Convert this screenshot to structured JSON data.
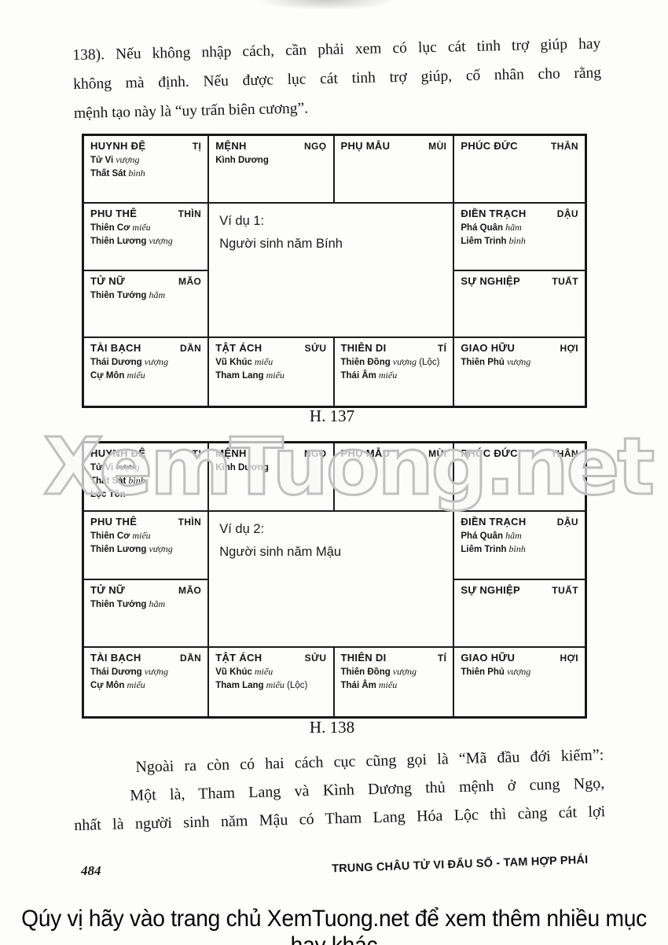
{
  "paragraph_top": {
    "lines": [
      "138). Nếu không nhập cách, cần phải xem có lục cát tinh trợ giúp hay",
      "không mà định. Nếu được lục cát tinh trợ giúp, cố nhân cho rằng",
      "mệnh tạo này là “uy trấn biên cương”."
    ]
  },
  "fig1": {
    "caption": "H. 137",
    "center": {
      "title": "Ví dụ 1:",
      "subtitle": "Người sinh năm Bính"
    },
    "cells": {
      "ti": {
        "palace": "HUYNH ĐỆ",
        "branch": "TỊ",
        "stars": [
          {
            "name": "Tử Vi",
            "status": "vượng"
          },
          {
            "name": "Thất Sát",
            "status": "bình"
          }
        ]
      },
      "ngo": {
        "palace": "MỆNH",
        "branch": "NGỌ",
        "stars": [
          {
            "name": "Kình Dương"
          }
        ]
      },
      "mui": {
        "palace": "PHỤ MẪU",
        "branch": "MÙI",
        "stars": []
      },
      "than": {
        "palace": "PHÚC ĐỨC",
        "branch": "THÂN",
        "stars": []
      },
      "thin": {
        "palace": "PHU THÊ",
        "branch": "THÌN",
        "stars": [
          {
            "name": "Thiên Cơ",
            "status": "miếu"
          },
          {
            "name": "Thiên Lương",
            "status": "vượng"
          }
        ]
      },
      "dau": {
        "palace": "ĐIỀN TRẠCH",
        "branch": "DẬU",
        "stars": [
          {
            "name": "Phá Quân",
            "status": "hãm"
          },
          {
            "name": "Liêm Trinh",
            "status": "bình"
          }
        ]
      },
      "mao": {
        "palace": "TỬ NỮ",
        "branch": "MÃO",
        "stars": [
          {
            "name": "Thiên Tướng",
            "status": "hãm"
          }
        ]
      },
      "tuat": {
        "palace": "SỰ NGHIỆP",
        "branch": "TUẤT",
        "stars": []
      },
      "dan": {
        "palace": "TÀI BẠCH",
        "branch": "DẦN",
        "stars": [
          {
            "name": "Thái Dương",
            "status": "vượng"
          },
          {
            "name": "Cự Môn",
            "status": "miếu"
          }
        ]
      },
      "suu": {
        "palace": "TẬT ÁCH",
        "branch": "SỬU",
        "stars": [
          {
            "name": "Vũ Khúc",
            "status": "miếu"
          },
          {
            "name": "Tham Lang",
            "status": "miếu"
          }
        ]
      },
      "ty": {
        "palace": "THIÊN DI",
        "branch": "TÍ",
        "stars": [
          {
            "name": "Thiên Đồng",
            "status": "vượng",
            "note": "(Lộc)"
          },
          {
            "name": "Thái Âm",
            "status": "miếu"
          }
        ]
      },
      "hoi": {
        "palace": "GIAO HỮU",
        "branch": "HỢI",
        "stars": [
          {
            "name": "Thiên Phủ",
            "status": "vượng"
          }
        ]
      }
    }
  },
  "fig2": {
    "caption": "H. 138",
    "center": {
      "title": "Ví dụ 2:",
      "subtitle": "Người sinh năm Mậu"
    },
    "cells": {
      "ti": {
        "palace": "HUYNH ĐỆ",
        "branch": "TỊ",
        "stars": [
          {
            "name": "Tử Vi",
            "status": "vượng"
          },
          {
            "name": "Thất Sát",
            "status": "bình"
          },
          {
            "name": "Lộc Tồn"
          }
        ]
      },
      "ngo": {
        "palace": "MỆNH",
        "branch": "NGỌ",
        "stars": [
          {
            "name": "Kình Dương"
          }
        ]
      },
      "mui": {
        "palace": "PHỤ MẪU",
        "branch": "MÙI",
        "stars": []
      },
      "than": {
        "palace": "PHÚC ĐỨC",
        "branch": "THÂN",
        "stars": []
      },
      "thin": {
        "palace": "PHU THÊ",
        "branch": "THÌN",
        "stars": [
          {
            "name": "Thiên Cơ",
            "status": "miếu"
          },
          {
            "name": "Thiên Lương",
            "status": "vượng"
          }
        ]
      },
      "dau": {
        "palace": "ĐIỀN TRẠCH",
        "branch": "DẬU",
        "stars": [
          {
            "name": "Phá Quân",
            "status": "hãm"
          },
          {
            "name": "Liêm Trinh",
            "status": "bình"
          }
        ]
      },
      "mao": {
        "palace": "TỬ NỮ",
        "branch": "MÃO",
        "stars": [
          {
            "name": "Thiên Tướng",
            "status": "hãm"
          }
        ]
      },
      "tuat": {
        "palace": "SỰ NGHIỆP",
        "branch": "TUẤT",
        "stars": []
      },
      "dan": {
        "palace": "TÀI BẠCH",
        "branch": "DẦN",
        "stars": [
          {
            "name": "Thái Dương",
            "status": "vượng"
          },
          {
            "name": "Cự Môn",
            "status": "miếu"
          }
        ]
      },
      "suu": {
        "palace": "TẬT ÁCH",
        "branch": "SỬU",
        "stars": [
          {
            "name": "Vũ Khúc",
            "status": "miếu"
          },
          {
            "name": "Tham Lang",
            "status": "miếu",
            "note": "(Lộc)"
          }
        ]
      },
      "ty": {
        "palace": "THIÊN DI",
        "branch": "TÍ",
        "stars": [
          {
            "name": "Thiên Đồng",
            "status": "vượng"
          },
          {
            "name": "Thái Âm",
            "status": "miếu"
          }
        ]
      },
      "hoi": {
        "palace": "GIAO HỮU",
        "branch": "HỢI",
        "stars": [
          {
            "name": "Thiên Phủ",
            "status": "vượng"
          }
        ]
      }
    }
  },
  "watermark": "XemTuong.net",
  "paragraph_bottom": {
    "lines": [
      "Ngoài ra còn có hai cách cục cũng gọi là “Mã đầu đới kiếm”:",
      "Một là, Tham Lang và Kình Dương thủ mệnh ở cung Ngọ,",
      "nhất là người sinh năm Mậu có Tham Lang Hóa Lộc thì càng cát lợi"
    ]
  },
  "footer": {
    "page_number": "484",
    "running_title": "TRUNG CHÂU TỬ VI ĐẨU SỐ - TAM HỢP PHÁI",
    "promo": "Qúy vị hãy vào trang chủ XemTuong.net để xem thêm nhiều mục hay khác"
  }
}
